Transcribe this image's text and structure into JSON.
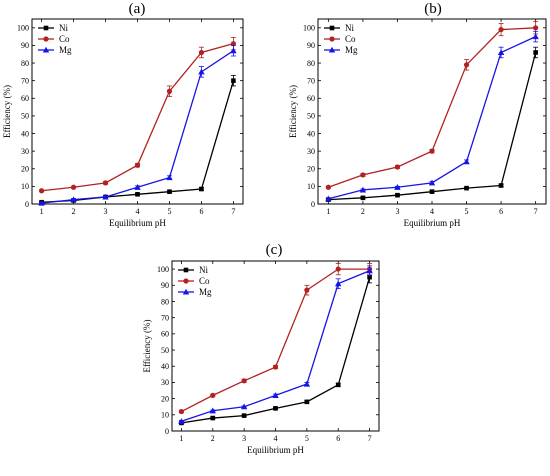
{
  "chart_data": [
    {
      "panel": "(a)",
      "type": "line",
      "xlabel": "Equilibrium pH",
      "ylabel": "Efficiency (%)",
      "x": [
        1,
        2,
        3,
        4,
        5,
        6,
        7
      ],
      "xlim": [
        0.7,
        7.3
      ],
      "ylim": [
        0,
        105
      ],
      "yticks": [
        0,
        10,
        20,
        30,
        40,
        50,
        60,
        70,
        80,
        90,
        100
      ],
      "legend": "top-left",
      "series": [
        {
          "name": "Ni",
          "color": "#000000",
          "marker": "square",
          "values": [
            1,
            2,
            4,
            5.5,
            7,
            8.5,
            70
          ],
          "errors": [
            0.5,
            0.5,
            0.5,
            0.5,
            0.5,
            0.8,
            3
          ]
        },
        {
          "name": "Co",
          "color": "#b22222",
          "marker": "circle",
          "values": [
            7.5,
            9.5,
            12,
            22,
            64,
            86,
            91
          ],
          "errors": [
            0.5,
            0.5,
            0.8,
            1,
            3,
            3,
            3.5
          ]
        },
        {
          "name": "Mg",
          "color": "#1515e6",
          "marker": "triangle",
          "values": [
            0.5,
            2.5,
            4,
            9.5,
            15,
            75,
            87
          ],
          "errors": [
            0.5,
            0.5,
            0.5,
            0.8,
            1,
            3,
            3
          ]
        }
      ]
    },
    {
      "panel": "(b)",
      "type": "line",
      "xlabel": "Equilibrium pH",
      "ylabel": "Efficiency (%)",
      "x": [
        1,
        2,
        3,
        4,
        5,
        6,
        7
      ],
      "xlim": [
        0.7,
        7.3
      ],
      "ylim": [
        0,
        105
      ],
      "yticks": [
        0,
        10,
        20,
        30,
        40,
        50,
        60,
        70,
        80,
        90,
        100
      ],
      "legend": "top-left",
      "series": [
        {
          "name": "Ni",
          "color": "#000000",
          "marker": "square",
          "values": [
            2.5,
            3.5,
            5,
            7,
            9,
            10.5,
            86
          ],
          "errors": [
            0.5,
            0.5,
            0.5,
            0.5,
            0.5,
            0.8,
            3
          ]
        },
        {
          "name": "Co",
          "color": "#b22222",
          "marker": "circle",
          "values": [
            9.5,
            16.5,
            21,
            30,
            79,
            99,
            100
          ],
          "errors": [
            0.5,
            0.8,
            0.8,
            1,
            3,
            3.5,
            3.5
          ]
        },
        {
          "name": "Mg",
          "color": "#1515e6",
          "marker": "triangle",
          "values": [
            3,
            8,
            9.5,
            12,
            24,
            86,
            95
          ],
          "errors": [
            0.5,
            0.5,
            0.5,
            0.8,
            1,
            3,
            3
          ]
        }
      ]
    },
    {
      "panel": "(c)",
      "type": "line",
      "xlabel": "Equilibrium pH",
      "ylabel": "Efficiency (%)",
      "x": [
        1,
        2,
        3,
        4,
        5,
        6,
        7
      ],
      "xlim": [
        0.7,
        7.3
      ],
      "ylim": [
        0,
        105
      ],
      "yticks": [
        0,
        10,
        20,
        30,
        40,
        50,
        60,
        70,
        80,
        90,
        100
      ],
      "legend": "top-left",
      "series": [
        {
          "name": "Ni",
          "color": "#000000",
          "marker": "square",
          "values": [
            5,
            8,
            9.5,
            14,
            18,
            28.5,
            95
          ],
          "errors": [
            0.5,
            0.5,
            0.5,
            0.5,
            0.8,
            1,
            3.5
          ]
        },
        {
          "name": "Co",
          "color": "#b22222",
          "marker": "circle",
          "values": [
            12,
            22,
            31,
            39.5,
            87,
            100,
            100
          ],
          "errors": [
            0.8,
            0.8,
            1,
            1,
            3,
            3.5,
            3.5
          ]
        },
        {
          "name": "Mg",
          "color": "#1515e6",
          "marker": "triangle",
          "values": [
            6,
            12.5,
            15,
            22,
            29,
            91,
            99
          ],
          "errors": [
            0.5,
            0.5,
            0.5,
            0.8,
            1,
            3,
            3
          ]
        }
      ]
    }
  ]
}
